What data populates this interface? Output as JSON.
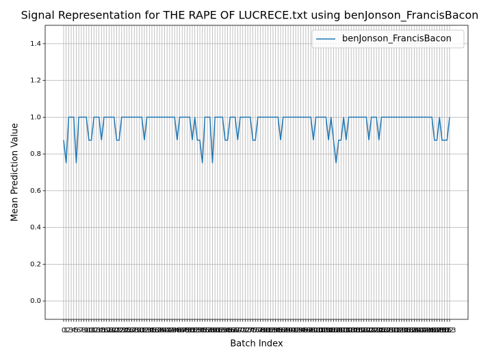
{
  "chart_data": {
    "type": "line",
    "title": "Signal Representation for THE RAPE OF LUCRECE.txt using benJonson_FrancisBacon",
    "x_label": "Batch Index",
    "y_label": "Mean Prediction Value",
    "categories": [
      "0",
      "1",
      "2",
      "3",
      "4",
      "5",
      "6",
      "7",
      "8",
      "9",
      "10",
      "11",
      "12",
      "13",
      "14",
      "15",
      "16",
      "17",
      "18",
      "19",
      "20",
      "21",
      "22",
      "23",
      "24",
      "25",
      "26",
      "27",
      "28",
      "29",
      "30",
      "31",
      "32",
      "33",
      "34",
      "35",
      "36",
      "37",
      "38",
      "39",
      "40",
      "41",
      "42",
      "43",
      "44",
      "45",
      "46",
      "47",
      "48",
      "49",
      "50",
      "51",
      "52",
      "53",
      "54",
      "55",
      "56",
      "57",
      "58",
      "59",
      "60",
      "61",
      "62",
      "63",
      "64",
      "65",
      "66",
      "67",
      "68",
      "69",
      "70",
      "71",
      "72",
      "73",
      "74",
      "75",
      "76",
      "77",
      "78",
      "79",
      "80",
      "81",
      "82",
      "83",
      "84",
      "85",
      "86",
      "87",
      "88",
      "89",
      "90",
      "91",
      "92",
      "93",
      "94",
      "95",
      "96",
      "97",
      "98",
      "99",
      "100",
      "101",
      "102",
      "103",
      "104",
      "105",
      "106",
      "107",
      "108",
      "109",
      "110",
      "111",
      "112",
      "113",
      "114",
      "115",
      "116",
      "117",
      "118",
      "119",
      "120",
      "121",
      "122",
      "123",
      "124",
      "125",
      "126",
      "127",
      "128",
      "129",
      "130",
      "131",
      "132",
      "133",
      "134",
      "135",
      "136",
      "137",
      "138",
      "139",
      "140",
      "141",
      "142",
      "143",
      "144",
      "145",
      "146",
      "147",
      "148",
      "149",
      "150",
      "151",
      "152",
      "153"
    ],
    "series": [
      {
        "name": "benJonson_FrancisBacon",
        "color": "#1f77b4",
        "values": [
          0.875,
          0.75,
          1,
          1,
          1,
          0.75,
          1,
          1,
          1,
          1,
          0.875,
          0.875,
          1,
          1,
          1,
          0.875,
          1,
          1,
          1,
          1,
          1,
          0.875,
          0.875,
          1,
          1,
          1,
          1,
          1,
          1,
          1,
          1,
          1,
          0.875,
          1,
          1,
          1,
          1,
          1,
          1,
          1,
          1,
          1,
          1,
          1,
          1,
          0.875,
          1,
          1,
          1,
          1,
          1,
          0.875,
          1,
          0.875,
          0.875,
          0.75,
          1,
          1,
          1,
          0.75,
          1,
          1,
          1,
          1,
          0.875,
          0.875,
          1,
          1,
          1,
          0.875,
          1,
          1,
          1,
          1,
          1,
          0.875,
          0.875,
          1,
          1,
          1,
          1,
          1,
          1,
          1,
          1,
          1,
          0.875,
          1,
          1,
          1,
          1,
          1,
          1,
          1,
          1,
          1,
          1,
          1,
          1,
          0.875,
          1,
          1,
          1,
          1,
          1,
          0.875,
          1,
          0.875,
          0.75,
          0.875,
          0.875,
          1,
          0.875,
          1,
          1,
          1,
          1,
          1,
          1,
          1,
          1,
          0.875,
          1,
          1,
          1,
          0.875,
          1,
          1,
          1,
          1,
          1,
          1,
          1,
          1,
          1,
          1,
          1,
          1,
          1,
          1,
          1,
          1,
          1,
          1,
          1,
          1,
          1,
          0.875,
          0.875,
          1,
          0.875,
          0.875,
          0.875,
          1
        ]
      }
    ],
    "ylim": [
      -0.1,
      1.5
    ],
    "yticks": [
      {
        "value": 0,
        "label": "0.0"
      },
      {
        "value": 0.2,
        "label": "0.2"
      },
      {
        "value": 0.4,
        "label": "0.4"
      },
      {
        "value": 0.6,
        "label": "0.6"
      },
      {
        "value": 0.8,
        "label": "0.8"
      },
      {
        "value": 1.0,
        "label": "1.0"
      },
      {
        "value": 1.2,
        "label": "1.2"
      },
      {
        "value": 1.4,
        "label": "1.4"
      }
    ],
    "grid": true,
    "legend": "upper right"
  }
}
